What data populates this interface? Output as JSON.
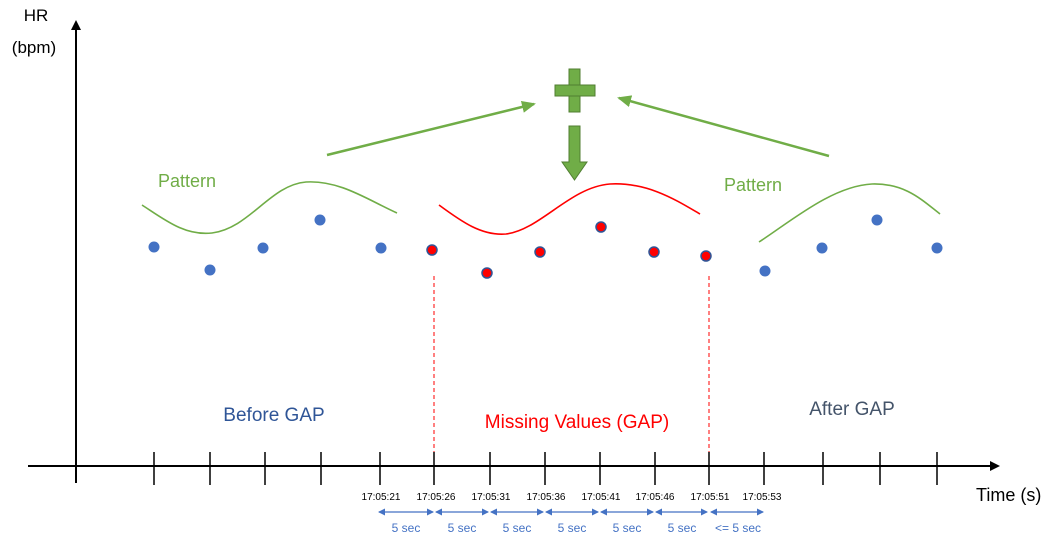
{
  "y_axis_label_line1": "HR",
  "y_axis_label_line2": "(bpm)",
  "x_axis_label": "Time (s)",
  "region_labels": {
    "before": "Before GAP",
    "gap": "Missing Values (GAP)",
    "after": "After GAP"
  },
  "pattern_labels": {
    "left": "Pattern",
    "right": "Pattern"
  },
  "timestamps": [
    "17:05:21",
    "17:05:26",
    "17:05:31",
    "17:05:36",
    "17:05:41",
    "17:05:46",
    "17:05:51",
    "17:05:53"
  ],
  "intervals": [
    "5 sec",
    "5 sec",
    "5 sec",
    "5 sec",
    "5 sec",
    "5 sec",
    "<= 5 sec"
  ],
  "colors": {
    "axis": "#000000",
    "observed_point": "#4472C4",
    "missing_point_fill": "#FF0000",
    "missing_point_outline": "#2F5597",
    "pattern_line": "#70AD47",
    "gap_curve": "#FF0000",
    "arrow": "#70AD47",
    "plus": "#70AD47",
    "region_before_text": "#2F5597",
    "region_gap_text": "#FF0000",
    "region_after_text": "#44546A",
    "interval_arrow": "#4472C4",
    "interval_text": "#4472C4"
  }
}
